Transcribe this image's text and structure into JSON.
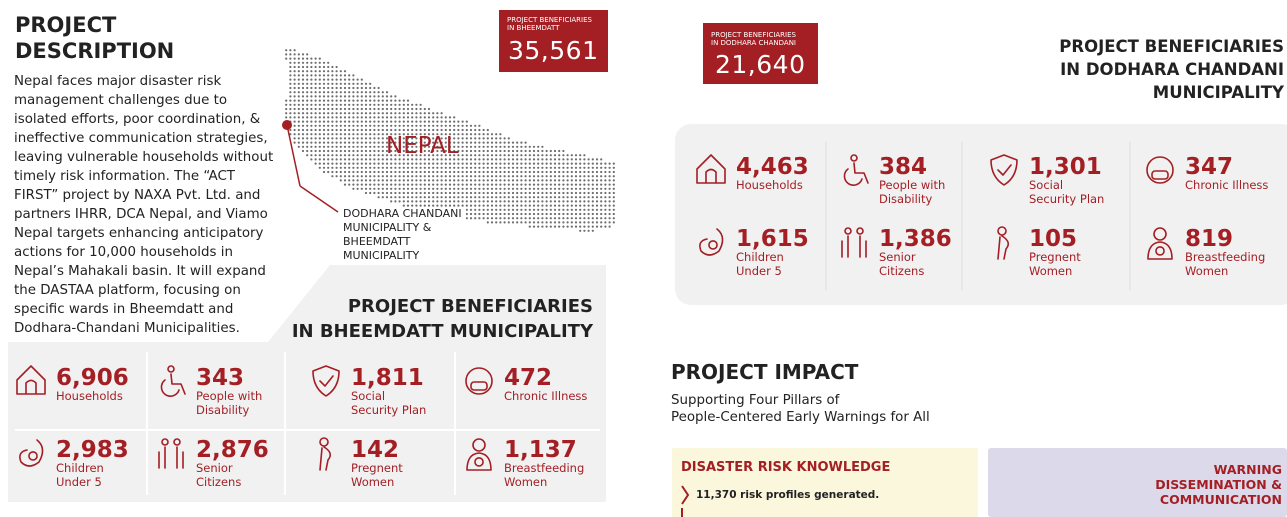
{
  "description": {
    "title": "PROJECT\nDESCRIPTION",
    "text": "Nepal faces major disaster risk management challenges due to isolated efforts, poor coordination, & ineffective communication strategies, leaving vulnerable households without timely risk information. The “ACT FIRST” project by NAXA Pvt. Ltd. and partners IHRR, DCA Nepal, and Viamo Nepal targets enhancing anticipatory actions for 10,000 households in Nepal’s Mahakali basin. It will expand the DASTAA platform, focusing on specific wards in Bheemdatt and Dodhara-Chandani Municipalities."
  },
  "map": {
    "country": "NEPAL",
    "location_label": "DODHARA CHANDANI\nMUNICIPALITY &\nBHEEMDATT\nMUNICIPALITY"
  },
  "bheemdatt": {
    "badge_label": "PROJECT BENEFICIARIES\nIN BHEEMDATT",
    "badge_value": "35,561",
    "heading": "PROJECT BENEFICIARIES\nIN BHEEMDATT MUNICIPALITY",
    "stats": [
      {
        "value": "6,906",
        "label": "Households"
      },
      {
        "value": "343",
        "label": "People with\nDisability"
      },
      {
        "value": "1,811",
        "label": "Social\nSecurity Plan"
      },
      {
        "value": "472",
        "label": "Chronic Illness"
      },
      {
        "value": "2,983",
        "label": "Children\nUnder 5"
      },
      {
        "value": "2,876",
        "label": "Senior\nCitizens"
      },
      {
        "value": "142",
        "label": "Pregnent\nWomen"
      },
      {
        "value": "1,137",
        "label": "Breastfeeding\nWomen"
      }
    ]
  },
  "dodhara": {
    "badge_label": "PROJECT BENEFICIARIES\nIN DODHARA CHANDANI",
    "badge_value": "21,640",
    "heading": "PROJECT BENEFICIARIES\nIN DODHARA CHANDANI\nMUNICIPALITY",
    "stats": [
      {
        "value": "4,463",
        "label": "Households"
      },
      {
        "value": "384",
        "label": "People with\nDisability"
      },
      {
        "value": "1,301",
        "label": "Social\nSecurity Plan"
      },
      {
        "value": "347",
        "label": "Chronic Illness"
      },
      {
        "value": "1,615",
        "label": "Children\nUnder 5"
      },
      {
        "value": "1,386",
        "label": "Senior\nCitizens"
      },
      {
        "value": "105",
        "label": "Pregnent\nWomen"
      },
      {
        "value": "819",
        "label": "Breastfeeding\nWomen"
      }
    ]
  },
  "impact": {
    "title": "PROJECT IMPACT",
    "subtitle": "Supporting Four Pillars of\nPeople-Centered Early Warnings for All",
    "pillars": [
      {
        "title": "DISASTER RISK KNOWLEDGE",
        "items": [
          "11,370 risk profiles generated."
        ]
      },
      {
        "title": "WARNING\nDISSEMINATION &\nCOMMUNICATION"
      }
    ]
  }
}
